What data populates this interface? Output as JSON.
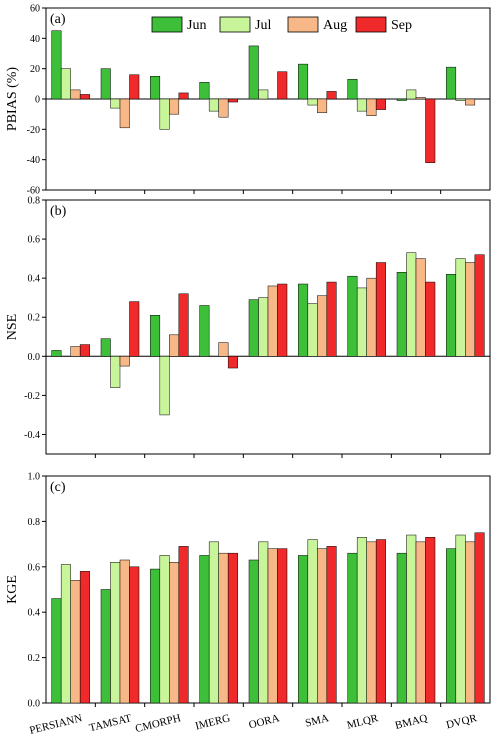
{
  "chart_data": {
    "type": "bar",
    "categories": [
      "PERSIANN",
      "TAMSAT",
      "CMORPH",
      "IMERG",
      "OORA",
      "SMA",
      "MLQR",
      "BMAQ",
      "DVQR"
    ],
    "legend": {
      "placement": "top-right",
      "entries": [
        "Jun",
        "Jul",
        "Aug",
        "Sep"
      ]
    },
    "series_colors": {
      "Jun": "#3dbf3a",
      "Jul": "#c8f59a",
      "Aug": "#f7b787",
      "Sep": "#f02a2a"
    },
    "panels": [
      {
        "label": "(a)",
        "ylabel": "PBIAS (%)",
        "ylim": [
          -60,
          60
        ],
        "yticks": [
          -60,
          -40,
          -20,
          0,
          20,
          40,
          60
        ],
        "zero_line": true,
        "series": [
          {
            "name": "Jun",
            "values": [
              45,
              20,
              15,
              11,
              35,
              23,
              13,
              -1,
              21
            ]
          },
          {
            "name": "Jul",
            "values": [
              20,
              -6,
              -20,
              -8,
              6,
              -4,
              -8,
              6,
              -1
            ]
          },
          {
            "name": "Aug",
            "values": [
              6,
              -19,
              -10,
              -12,
              0,
              -9,
              -11,
              1,
              -4
            ]
          },
          {
            "name": "Sep",
            "values": [
              3,
              16,
              4,
              -2,
              18,
              5,
              -7,
              -42,
              0
            ]
          }
        ]
      },
      {
        "label": "(b)",
        "ylabel": "NSE",
        "ylim": [
          -0.5,
          0.8
        ],
        "yticks": [
          -0.4,
          -0.2,
          0.0,
          0.2,
          0.4,
          0.6,
          0.8
        ],
        "zero_line": true,
        "series": [
          {
            "name": "Jun",
            "values": [
              0.03,
              0.09,
              0.21,
              0.26,
              0.29,
              0.37,
              0.41,
              0.43,
              0.42
            ]
          },
          {
            "name": "Jul",
            "values": [
              0.0,
              -0.16,
              -0.3,
              0.0,
              0.3,
              0.27,
              0.35,
              0.53,
              0.5
            ]
          },
          {
            "name": "Aug",
            "values": [
              0.05,
              -0.05,
              0.11,
              0.07,
              0.36,
              0.31,
              0.4,
              0.5,
              0.48
            ]
          },
          {
            "name": "Sep",
            "values": [
              0.06,
              0.28,
              0.32,
              -0.06,
              0.37,
              0.38,
              0.48,
              0.38,
              0.52
            ]
          }
        ]
      },
      {
        "label": "(c)",
        "ylabel": "KGE",
        "ylim": [
          0.0,
          1.0
        ],
        "yticks": [
          0.0,
          0.2,
          0.4,
          0.6,
          0.8,
          1.0
        ],
        "zero_line": false,
        "series": [
          {
            "name": "Jun",
            "values": [
              0.46,
              0.5,
              0.59,
              0.65,
              0.63,
              0.65,
              0.66,
              0.66,
              0.68
            ]
          },
          {
            "name": "Jul",
            "values": [
              0.61,
              0.62,
              0.65,
              0.71,
              0.71,
              0.72,
              0.73,
              0.74,
              0.74
            ]
          },
          {
            "name": "Aug",
            "values": [
              0.54,
              0.63,
              0.62,
              0.66,
              0.68,
              0.68,
              0.71,
              0.71,
              0.71
            ]
          },
          {
            "name": "Sep",
            "values": [
              0.58,
              0.6,
              0.69,
              0.66,
              0.68,
              0.69,
              0.72,
              0.73,
              0.75
            ]
          }
        ]
      }
    ]
  }
}
